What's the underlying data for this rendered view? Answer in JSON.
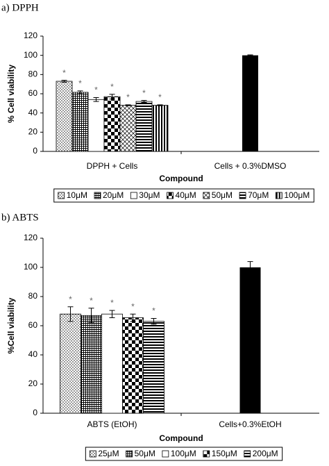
{
  "chart_data": [
    {
      "type": "bar",
      "title": "a) DPPH",
      "xlabel": "Compound",
      "ylabel": "% Cell viability",
      "categories": [
        "DPPH + Cells",
        "Cells + 0.3%DMSO"
      ],
      "ylim": [
        0,
        120
      ],
      "yticks": [
        0,
        20,
        40,
        60,
        80,
        100,
        120
      ],
      "series": [
        {
          "name": "10μM",
          "pattern": "dots",
          "values": [
            73,
            null
          ],
          "errors": [
            1,
            null
          ],
          "marker_labels": [
            "*",
            null
          ]
        },
        {
          "name": "20μM",
          "pattern": "grid",
          "values": [
            61.5,
            null
          ],
          "errors": [
            1.5,
            null
          ],
          "marker_labels": [
            "*",
            null
          ]
        },
        {
          "name": "30μM",
          "pattern": "white",
          "values": [
            54,
            null
          ],
          "errors": [
            2,
            null
          ],
          "marker_labels": [
            "*",
            null
          ]
        },
        {
          "name": "40μM",
          "pattern": "checker",
          "values": [
            57,
            null
          ],
          "errors": [
            2.5,
            null
          ],
          "marker_labels": [
            "*",
            null
          ]
        },
        {
          "name": "50μM",
          "pattern": "crosshatch",
          "values": [
            48,
            null
          ],
          "errors": [
            0.5,
            null
          ],
          "marker_labels": [
            "*",
            null
          ]
        },
        {
          "name": "70μM",
          "pattern": "hbars",
          "values": [
            52,
            null
          ],
          "errors": [
            1,
            null
          ],
          "marker_labels": [
            "*",
            null
          ]
        },
        {
          "name": "100μM",
          "pattern": "vbars",
          "values": [
            48,
            null
          ],
          "errors": [
            0.5,
            null
          ],
          "marker_labels": [
            "*",
            null
          ]
        }
      ],
      "control": {
        "color": "#000000",
        "values": [
          null,
          100
        ],
        "errors": [
          null,
          0.5
        ]
      }
    },
    {
      "type": "bar",
      "title": "b) ABTS",
      "xlabel": "Compound",
      "ylabel": "%Cell viability",
      "categories": [
        "ABTS (EtOH)",
        "Cells+0.3%EtOH"
      ],
      "ylim": [
        0,
        120
      ],
      "yticks": [
        0,
        20,
        40,
        60,
        80,
        100,
        120
      ],
      "series": [
        {
          "name": "25μM",
          "pattern": "dots",
          "values": [
            68,
            null
          ],
          "errors": [
            5,
            null
          ],
          "marker_labels": [
            "*",
            null
          ]
        },
        {
          "name": "50μM",
          "pattern": "grid",
          "values": [
            67,
            null
          ],
          "errors": [
            5,
            null
          ],
          "marker_labels": [
            "*",
            null
          ]
        },
        {
          "name": "100μM",
          "pattern": "white",
          "values": [
            68,
            null
          ],
          "errors": [
            2.5,
            null
          ],
          "marker_labels": [
            "*",
            null
          ]
        },
        {
          "name": "150μM",
          "pattern": "checker",
          "values": [
            65.5,
            null
          ],
          "errors": [
            2.5,
            null
          ],
          "marker_labels": [
            "*",
            null
          ]
        },
        {
          "name": "200μM",
          "pattern": "hbars",
          "values": [
            63,
            null
          ],
          "errors": [
            2,
            null
          ],
          "marker_labels": [
            "*",
            null
          ]
        }
      ],
      "control": {
        "color": "#000000",
        "values": [
          null,
          100
        ],
        "errors": [
          null,
          4
        ]
      }
    }
  ]
}
